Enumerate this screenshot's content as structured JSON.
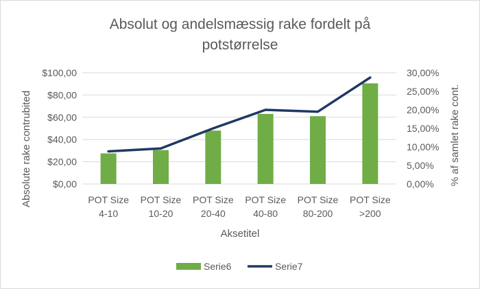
{
  "chart_data": {
    "type": "bar",
    "title_lines": [
      "Absolut og andelsmæssig rake fordelt på",
      "potstørrelse"
    ],
    "categories": [
      [
        "POT Size",
        "4-10"
      ],
      [
        "POT Size",
        "10-20"
      ],
      [
        "POT Size",
        "20-40"
      ],
      [
        "POT Size",
        "40-80"
      ],
      [
        "POT Size",
        "80-200"
      ],
      [
        "POT Size",
        ">200"
      ]
    ],
    "xlabel": "Aksetitel",
    "ylabel": "Absolute rake contrubited",
    "y2label": "% af samlet rake cont.",
    "ylim": [
      0,
      100
    ],
    "y2lim": [
      0,
      30
    ],
    "y_ticks": [
      "$0,00",
      "$20,00",
      "$40,00",
      "$60,00",
      "$80,00",
      "$100,00"
    ],
    "y2_ticks": [
      "0,00%",
      "5,00%",
      "10,00%",
      "15,00%",
      "20,00%",
      "25,00%",
      "30,00%"
    ],
    "grid": true,
    "legend_position": "bottom",
    "series": [
      {
        "name": "Serie6",
        "type": "bar",
        "axis": "left",
        "color": "#70ad47",
        "values": [
          27.5,
          30.5,
          48,
          63,
          61,
          90.5
        ]
      },
      {
        "name": "Serie7",
        "type": "line",
        "axis": "right",
        "color": "#203864",
        "values": [
          8.8,
          9.6,
          15.0,
          20.0,
          19.5,
          28.7
        ]
      }
    ]
  }
}
